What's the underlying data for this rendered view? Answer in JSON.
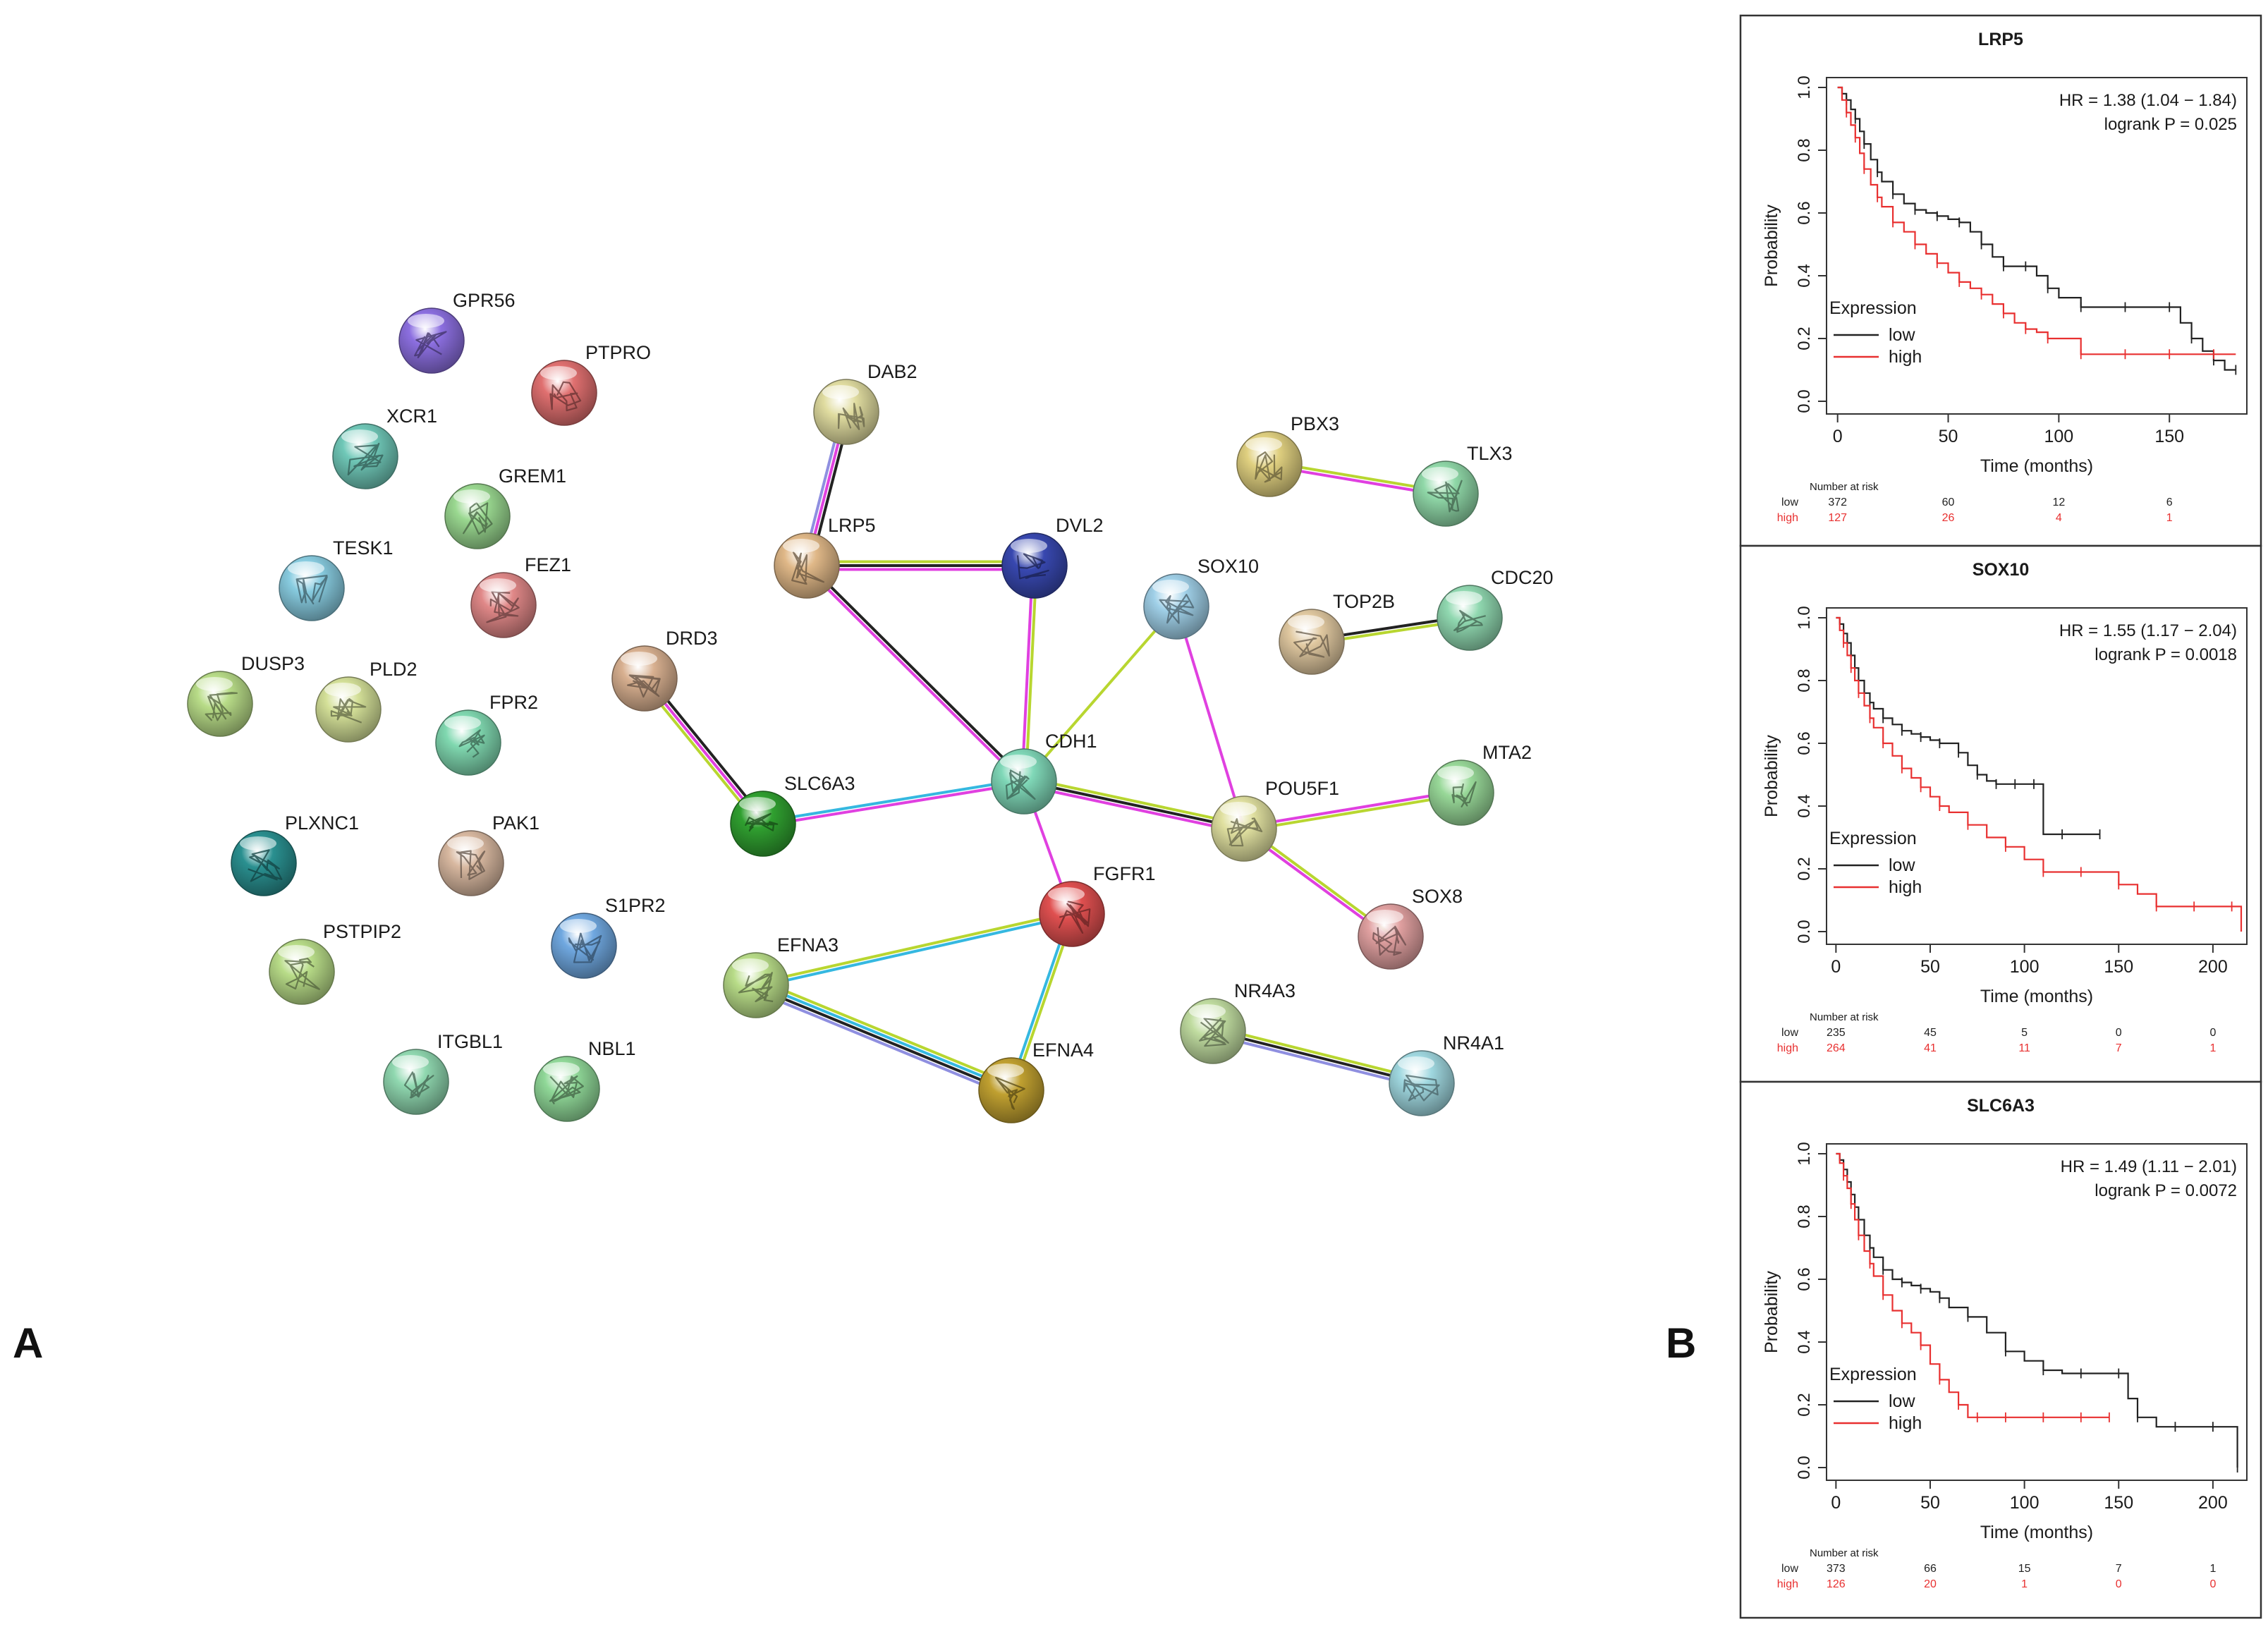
{
  "panel_labels": {
    "a": "A",
    "b": "B"
  },
  "network": {
    "colors": {
      "text": "#1a1a1a",
      "edge_black": "#222222",
      "edge_magenta": "#e040e0",
      "edge_yellowgreen": "#b8d630",
      "edge_cyan": "#35b8e0",
      "edge_lavender": "#8f8fe0"
    },
    "nodes": [
      {
        "id": "GPR56",
        "label": "GPR56",
        "color": "#8c6fe0",
        "icon": "protein-structure-icon"
      },
      {
        "id": "PTPRO",
        "label": "PTPRO",
        "color": "#e07070",
        "icon": "protein-structure-icon"
      },
      {
        "id": "XCR1",
        "label": "XCR1",
        "color": "#70c8b8",
        "icon": "protein-structure-icon"
      },
      {
        "id": "GREM1",
        "label": "GREM1",
        "color": "#9ad890",
        "icon": "protein-structure-icon"
      },
      {
        "id": "TESK1",
        "label": "TESK1",
        "color": "#88cce0",
        "icon": "protein-structure-icon"
      },
      {
        "id": "FEZ1",
        "label": "FEZ1",
        "color": "#e08888",
        "icon": "protein-structure-icon"
      },
      {
        "id": "DUSP3",
        "label": "DUSP3",
        "color": "#b8dc88",
        "icon": "protein-structure-icon"
      },
      {
        "id": "PLD2",
        "label": "PLD2",
        "color": "#d4e098",
        "icon": "protein-structure-icon"
      },
      {
        "id": "FPR2",
        "label": "FPR2",
        "color": "#80d8b0",
        "icon": "protein-structure-icon"
      },
      {
        "id": "PLXNC1",
        "label": "PLXNC1",
        "color": "#2a9090",
        "icon": "protein-structure-icon"
      },
      {
        "id": "PAK1",
        "label": "PAK1",
        "color": "#d8b8a0",
        "icon": "protein-structure-icon"
      },
      {
        "id": "S1PR2",
        "label": "S1PR2",
        "color": "#70a8e0",
        "icon": "protein-structure-icon"
      },
      {
        "id": "PSTPIP2",
        "label": "PSTPIP2",
        "color": "#b8dc88",
        "icon": "protein-structure-icon"
      },
      {
        "id": "ITGBL1",
        "label": "ITGBL1",
        "color": "#90d8b0",
        "icon": "protein-structure-icon"
      },
      {
        "id": "NBL1",
        "label": "NBL1",
        "color": "#90d898",
        "icon": "protein-structure-icon"
      },
      {
        "id": "DAB2",
        "label": "DAB2",
        "color": "#e0dca0",
        "icon": "protein-structure-icon"
      },
      {
        "id": "LRP5",
        "label": "LRP5",
        "color": "#e0b888",
        "icon": "protein-structure-icon"
      },
      {
        "id": "DVL2",
        "label": "DVL2",
        "color": "#3848b0",
        "icon": "protein-structure-icon"
      },
      {
        "id": "DRD3",
        "label": "DRD3",
        "color": "#d8b090",
        "icon": "protein-structure-icon"
      },
      {
        "id": "SLC6A3",
        "label": "SLC6A3",
        "color": "#30a030",
        "icon": "protein-structure-icon"
      },
      {
        "id": "CDH1",
        "label": "CDH1",
        "color": "#80d8b8",
        "icon": "protein-structure-icon"
      },
      {
        "id": "SOX10",
        "label": "SOX10",
        "color": "#a0d0e8",
        "icon": "protein-structure-icon"
      },
      {
        "id": "POU5F1",
        "label": "POU5F1",
        "color": "#e0e0a0",
        "icon": "protein-structure-icon"
      },
      {
        "id": "FGFR1",
        "label": "FGFR1",
        "color": "#e05050",
        "icon": "protein-structure-icon"
      },
      {
        "id": "EFNA3",
        "label": "EFNA3",
        "color": "#b8dc88",
        "icon": "protein-structure-icon"
      },
      {
        "id": "EFNA4",
        "label": "EFNA4",
        "color": "#c0a030",
        "icon": "protein-structure-icon"
      },
      {
        "id": "PBX3",
        "label": "PBX3",
        "color": "#e0d080",
        "icon": "protein-structure-icon"
      },
      {
        "id": "TLX3",
        "label": "TLX3",
        "color": "#90d8a8",
        "icon": "protein-structure-icon"
      },
      {
        "id": "TOP2B",
        "label": "TOP2B",
        "color": "#e0c8a0",
        "icon": "protein-structure-icon"
      },
      {
        "id": "CDC20",
        "label": "CDC20",
        "color": "#90d8b0",
        "icon": "protein-structure-icon"
      },
      {
        "id": "MTA2",
        "label": "MTA2",
        "color": "#98d898",
        "icon": "protein-structure-icon"
      },
      {
        "id": "SOX8",
        "label": "SOX8",
        "color": "#e0a0a0",
        "icon": "protein-structure-icon"
      },
      {
        "id": "NR4A3",
        "label": "NR4A3",
        "color": "#c0dca0",
        "icon": "protein-structure-icon"
      },
      {
        "id": "NR4A1",
        "label": "NR4A1",
        "color": "#a0d8e0",
        "icon": "protein-structure-icon"
      }
    ],
    "edges": [
      {
        "source": "DAB2",
        "target": "LRP5",
        "evidence": [
          "black",
          "magenta",
          "lavender"
        ]
      },
      {
        "source": "LRP5",
        "target": "DVL2",
        "evidence": [
          "yellowgreen",
          "black",
          "magenta"
        ]
      },
      {
        "source": "LRP5",
        "target": "CDH1",
        "evidence": [
          "black",
          "magenta"
        ]
      },
      {
        "source": "DVL2",
        "target": "CDH1",
        "evidence": [
          "yellowgreen",
          "magenta"
        ]
      },
      {
        "source": "DRD3",
        "target": "SLC6A3",
        "evidence": [
          "black",
          "magenta",
          "yellowgreen"
        ]
      },
      {
        "source": "SLC6A3",
        "target": "CDH1",
        "evidence": [
          "cyan",
          "magenta"
        ]
      },
      {
        "source": "SOX10",
        "target": "CDH1",
        "evidence": [
          "yellowgreen"
        ]
      },
      {
        "source": "SOX10",
        "target": "POU5F1",
        "evidence": [
          "magenta"
        ]
      },
      {
        "source": "CDH1",
        "target": "POU5F1",
        "evidence": [
          "yellowgreen",
          "black",
          "magenta"
        ]
      },
      {
        "source": "CDH1",
        "target": "FGFR1",
        "evidence": [
          "magenta"
        ]
      },
      {
        "source": "POU5F1",
        "target": "MTA2",
        "evidence": [
          "magenta",
          "yellowgreen"
        ]
      },
      {
        "source": "POU5F1",
        "target": "SOX8",
        "evidence": [
          "yellowgreen",
          "magenta"
        ]
      },
      {
        "source": "FGFR1",
        "target": "EFNA3",
        "evidence": [
          "cyan",
          "yellowgreen"
        ]
      },
      {
        "source": "FGFR1",
        "target": "EFNA4",
        "evidence": [
          "yellowgreen",
          "cyan"
        ]
      },
      {
        "source": "EFNA3",
        "target": "EFNA4",
        "evidence": [
          "yellowgreen",
          "cyan",
          "black",
          "lavender"
        ]
      },
      {
        "source": "PBX3",
        "target": "TLX3",
        "evidence": [
          "yellowgreen",
          "magenta"
        ]
      },
      {
        "source": "TOP2B",
        "target": "CDC20",
        "evidence": [
          "black",
          "yellowgreen"
        ]
      },
      {
        "source": "NR4A3",
        "target": "NR4A1",
        "evidence": [
          "yellowgreen",
          "black",
          "lavender"
        ]
      }
    ]
  },
  "chart_data": [
    {
      "type": "line",
      "subtype": "kaplan-meier",
      "title": "LRP5",
      "xlabel": "Time (months)",
      "ylabel": "Probability",
      "xlim": [
        -5,
        185
      ],
      "ylim": [
        0,
        1.0
      ],
      "xticks": [
        0,
        50,
        100,
        150
      ],
      "yticks": [
        0.0,
        0.2,
        0.4,
        0.6,
        0.8,
        1.0
      ],
      "annotation": {
        "hr": "HR = 1.38 (1.04 − 1.84)",
        "logrank": "logrank P = 0.025"
      },
      "legend": {
        "title": "Expression",
        "position": "bottom-left",
        "entries": [
          "low",
          "high"
        ]
      },
      "series": [
        {
          "name": "low",
          "color": "#222222",
          "x": [
            0,
            2,
            4,
            6,
            8,
            10,
            12,
            15,
            18,
            20,
            25,
            30,
            35,
            40,
            45,
            50,
            55,
            60,
            65,
            70,
            75,
            80,
            85,
            90,
            95,
            100,
            110,
            120,
            130,
            140,
            150,
            155,
            160,
            165,
            170,
            175,
            180
          ],
          "y": [
            1.0,
            0.98,
            0.96,
            0.93,
            0.9,
            0.86,
            0.82,
            0.77,
            0.73,
            0.7,
            0.66,
            0.63,
            0.61,
            0.6,
            0.59,
            0.58,
            0.57,
            0.54,
            0.5,
            0.46,
            0.43,
            0.43,
            0.43,
            0.4,
            0.36,
            0.33,
            0.3,
            0.3,
            0.3,
            0.3,
            0.3,
            0.25,
            0.2,
            0.16,
            0.13,
            0.1,
            0.1
          ]
        },
        {
          "name": "high",
          "color": "#e83030",
          "x": [
            0,
            2,
            4,
            6,
            8,
            10,
            12,
            15,
            18,
            20,
            25,
            30,
            35,
            40,
            45,
            50,
            55,
            60,
            65,
            70,
            75,
            80,
            85,
            90,
            95,
            100,
            110,
            120,
            130,
            140,
            150,
            160,
            170,
            180
          ],
          "y": [
            1.0,
            0.96,
            0.92,
            0.88,
            0.84,
            0.79,
            0.74,
            0.69,
            0.65,
            0.62,
            0.57,
            0.54,
            0.5,
            0.47,
            0.44,
            0.41,
            0.38,
            0.36,
            0.34,
            0.31,
            0.28,
            0.25,
            0.23,
            0.22,
            0.2,
            0.2,
            0.15,
            0.15,
            0.15,
            0.15,
            0.15,
            0.15,
            0.15,
            0.15
          ]
        }
      ],
      "risk_table": {
        "header": "Number at risk",
        "times": [
          0,
          50,
          100,
          150
        ],
        "rows": [
          {
            "label": "low",
            "values": [
              "372",
              "60",
              "12",
              "6"
            ]
          },
          {
            "label": "high",
            "values": [
              "127",
              "26",
              "4",
              "1"
            ]
          }
        ]
      }
    },
    {
      "type": "line",
      "subtype": "kaplan-meier",
      "title": "SOX10",
      "xlabel": "Time (months)",
      "ylabel": "Probability",
      "xlim": [
        -5,
        218
      ],
      "ylim": [
        0,
        1.0
      ],
      "xticks": [
        0,
        50,
        100,
        150,
        200
      ],
      "yticks": [
        0.0,
        0.2,
        0.4,
        0.6,
        0.8,
        1.0
      ],
      "annotation": {
        "hr": "HR = 1.55 (1.17 − 2.04)",
        "logrank": "logrank P = 0.0018"
      },
      "legend": {
        "title": "Expression",
        "position": "bottom-left",
        "entries": [
          "low",
          "high"
        ]
      },
      "series": [
        {
          "name": "low",
          "color": "#222222",
          "x": [
            0,
            2,
            4,
            6,
            8,
            10,
            12,
            15,
            18,
            20,
            25,
            30,
            35,
            40,
            45,
            50,
            55,
            60,
            65,
            70,
            75,
            80,
            85,
            90,
            95,
            100,
            105,
            110,
            120,
            130,
            140
          ],
          "y": [
            1.0,
            0.98,
            0.95,
            0.92,
            0.88,
            0.84,
            0.8,
            0.76,
            0.73,
            0.71,
            0.68,
            0.66,
            0.64,
            0.63,
            0.62,
            0.61,
            0.6,
            0.6,
            0.57,
            0.53,
            0.5,
            0.48,
            0.47,
            0.47,
            0.47,
            0.47,
            0.47,
            0.31,
            0.31,
            0.31,
            0.31
          ]
        },
        {
          "name": "high",
          "color": "#e83030",
          "x": [
            0,
            2,
            4,
            6,
            8,
            10,
            12,
            15,
            18,
            20,
            25,
            30,
            35,
            40,
            45,
            50,
            55,
            60,
            70,
            80,
            90,
            100,
            110,
            120,
            130,
            140,
            150,
            160,
            170,
            180,
            190,
            200,
            210,
            215
          ],
          "y": [
            1.0,
            0.96,
            0.92,
            0.88,
            0.84,
            0.8,
            0.76,
            0.72,
            0.68,
            0.65,
            0.6,
            0.56,
            0.52,
            0.49,
            0.46,
            0.43,
            0.4,
            0.38,
            0.34,
            0.3,
            0.27,
            0.23,
            0.19,
            0.19,
            0.19,
            0.19,
            0.15,
            0.12,
            0.08,
            0.08,
            0.08,
            0.08,
            0.08,
            0.0
          ]
        }
      ],
      "risk_table": {
        "header": "Number at risk",
        "times": [
          0,
          50,
          100,
          150,
          200
        ],
        "rows": [
          {
            "label": "low",
            "values": [
              "235",
              "45",
              "5",
              "0",
              "0"
            ]
          },
          {
            "label": "high",
            "values": [
              "264",
              "41",
              "11",
              "7",
              "1"
            ]
          }
        ]
      }
    },
    {
      "type": "line",
      "subtype": "kaplan-meier",
      "title": "SLC6A3",
      "xlabel": "Time (months)",
      "ylabel": "Probability",
      "xlim": [
        -5,
        218
      ],
      "ylim": [
        0,
        1.0
      ],
      "xticks": [
        0,
        50,
        100,
        150,
        200
      ],
      "yticks": [
        0.0,
        0.2,
        0.4,
        0.6,
        0.8,
        1.0
      ],
      "annotation": {
        "hr": "HR = 1.49 (1.11 − 2.01)",
        "logrank": "logrank P = 0.0072"
      },
      "legend": {
        "title": "Expression",
        "position": "bottom-left",
        "entries": [
          "low",
          "high"
        ]
      },
      "series": [
        {
          "name": "low",
          "color": "#222222",
          "x": [
            0,
            2,
            4,
            6,
            8,
            10,
            12,
            15,
            18,
            20,
            25,
            30,
            35,
            40,
            45,
            50,
            55,
            60,
            70,
            80,
            90,
            100,
            110,
            120,
            130,
            140,
            150,
            155,
            160,
            170,
            180,
            190,
            200,
            210,
            213
          ],
          "y": [
            1.0,
            0.98,
            0.95,
            0.91,
            0.87,
            0.83,
            0.79,
            0.74,
            0.7,
            0.67,
            0.63,
            0.6,
            0.59,
            0.58,
            0.57,
            0.56,
            0.54,
            0.51,
            0.48,
            0.43,
            0.37,
            0.34,
            0.31,
            0.3,
            0.3,
            0.3,
            0.3,
            0.22,
            0.16,
            0.13,
            0.13,
            0.13,
            0.13,
            0.13,
            0.0
          ]
        },
        {
          "name": "high",
          "color": "#e83030",
          "x": [
            0,
            2,
            4,
            6,
            8,
            10,
            12,
            15,
            18,
            20,
            25,
            30,
            35,
            40,
            45,
            50,
            55,
            60,
            65,
            70,
            75,
            80,
            90,
            100,
            110,
            120,
            130,
            140,
            145
          ],
          "y": [
            1.0,
            0.97,
            0.93,
            0.89,
            0.84,
            0.79,
            0.74,
            0.69,
            0.65,
            0.61,
            0.55,
            0.5,
            0.46,
            0.43,
            0.39,
            0.33,
            0.28,
            0.24,
            0.2,
            0.16,
            0.16,
            0.16,
            0.16,
            0.16,
            0.16,
            0.16,
            0.16,
            0.16,
            0.16
          ]
        }
      ],
      "risk_table": {
        "header": "Number at risk",
        "times": [
          0,
          50,
          100,
          150,
          200
        ],
        "rows": [
          {
            "label": "low",
            "values": [
              "373",
              "66",
              "15",
              "7",
              "1"
            ]
          },
          {
            "label": "high",
            "values": [
              "126",
              "20",
              "1",
              "0",
              "0"
            ]
          }
        ]
      }
    }
  ]
}
